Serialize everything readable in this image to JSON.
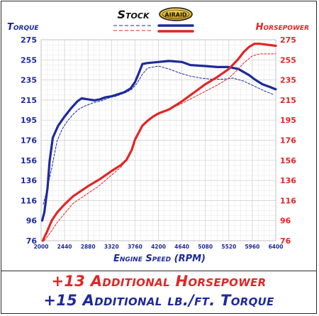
{
  "chart_data": {
    "type": "line",
    "title": "",
    "xlabel": "Engine Speed (RPM)",
    "ylabel_left": "Torque",
    "ylabel_right": "Horsepower",
    "x_ticks": [
      "2000",
      "2440",
      "2880",
      "3320",
      "3760",
      "4200",
      "4640",
      "5080",
      "5520",
      "5960",
      "6400"
    ],
    "y_ticks": [
      "76",
      "96",
      "116",
      "136",
      "156",
      "176",
      "195",
      "215",
      "235",
      "255",
      "275"
    ],
    "xlim": [
      2000,
      6400
    ],
    "ylim": [
      76,
      275
    ],
    "grid": true,
    "legend": {
      "stock_label": "Stock",
      "airaid_label": "AIRAID",
      "position": "top-center"
    },
    "colors": {
      "torque": "#1d2a9c",
      "horsepower": "#e22526"
    },
    "series": [
      {
        "name": "Torque",
        "variant": "Stock",
        "color": "#1d2a9c",
        "style": "dashed",
        "points": [
          [
            2040,
            112
          ],
          [
            2100,
            124
          ],
          [
            2200,
            148
          ],
          [
            2300,
            175
          ],
          [
            2400,
            187
          ],
          [
            2500,
            195
          ],
          [
            2600,
            201
          ],
          [
            2700,
            206
          ],
          [
            2800,
            209
          ],
          [
            2900,
            211
          ],
          [
            3000,
            213
          ],
          [
            3100,
            214
          ],
          [
            3200,
            216
          ],
          [
            3300,
            218
          ],
          [
            3400,
            219
          ],
          [
            3500,
            221
          ],
          [
            3600,
            223
          ],
          [
            3700,
            226
          ],
          [
            3800,
            232
          ],
          [
            3900,
            241
          ],
          [
            4000,
            247
          ],
          [
            4200,
            249
          ],
          [
            4400,
            246
          ],
          [
            4600,
            242
          ],
          [
            4800,
            239
          ],
          [
            5000,
            237
          ],
          [
            5200,
            236
          ],
          [
            5400,
            236
          ],
          [
            5600,
            237
          ],
          [
            5800,
            234
          ],
          [
            6000,
            229
          ],
          [
            6200,
            224
          ],
          [
            6350,
            221
          ]
        ]
      },
      {
        "name": "Torque",
        "variant": "AIRAID",
        "color": "#1d2a9c",
        "style": "solid",
        "points": [
          [
            2020,
            96
          ],
          [
            2060,
            104
          ],
          [
            2120,
            128
          ],
          [
            2160,
            155
          ],
          [
            2220,
            178
          ],
          [
            2320,
            190
          ],
          [
            2440,
            199
          ],
          [
            2560,
            207
          ],
          [
            2680,
            214
          ],
          [
            2760,
            217
          ],
          [
            2880,
            216
          ],
          [
            3000,
            215
          ],
          [
            3100,
            216
          ],
          [
            3200,
            218
          ],
          [
            3320,
            219
          ],
          [
            3440,
            221
          ],
          [
            3560,
            223
          ],
          [
            3680,
            227
          ],
          [
            3760,
            233
          ],
          [
            3840,
            243
          ],
          [
            3900,
            251
          ],
          [
            4000,
            252
          ],
          [
            4200,
            253
          ],
          [
            4400,
            254
          ],
          [
            4640,
            253
          ],
          [
            4800,
            250
          ],
          [
            5080,
            249
          ],
          [
            5300,
            248
          ],
          [
            5520,
            248
          ],
          [
            5700,
            246
          ],
          [
            5900,
            240
          ],
          [
            6000,
            236
          ],
          [
            6150,
            231
          ],
          [
            6300,
            228
          ],
          [
            6400,
            226
          ]
        ]
      },
      {
        "name": "Horsepower",
        "variant": "Stock",
        "color": "#e22526",
        "style": "dashed",
        "points": [
          [
            2060,
            76
          ],
          [
            2200,
            86
          ],
          [
            2300,
            94
          ],
          [
            2440,
            103
          ],
          [
            2600,
            113
          ],
          [
            2880,
            123
          ],
          [
            3100,
            131
          ],
          [
            3320,
            141
          ],
          [
            3500,
            149
          ],
          [
            3600,
            156
          ],
          [
            3700,
            166
          ],
          [
            3760,
            175
          ],
          [
            3800,
            181
          ],
          [
            3900,
            190
          ],
          [
            4000,
            195
          ],
          [
            4100,
            199
          ],
          [
            4200,
            201
          ],
          [
            4400,
            206
          ],
          [
            4640,
            212
          ],
          [
            4900,
            219
          ],
          [
            5080,
            224
          ],
          [
            5300,
            230
          ],
          [
            5520,
            237
          ],
          [
            5700,
            246
          ],
          [
            5800,
            252
          ],
          [
            5960,
            259
          ],
          [
            6100,
            261
          ],
          [
            6400,
            261
          ]
        ]
      },
      {
        "name": "Horsepower",
        "variant": "AIRAID",
        "color": "#e22526",
        "style": "solid",
        "points": [
          [
            2030,
            76
          ],
          [
            2120,
            86
          ],
          [
            2200,
            96
          ],
          [
            2300,
            104
          ],
          [
            2440,
            112
          ],
          [
            2600,
            120
          ],
          [
            2880,
            130
          ],
          [
            3100,
            137
          ],
          [
            3320,
            145
          ],
          [
            3500,
            151
          ],
          [
            3600,
            156
          ],
          [
            3700,
            166
          ],
          [
            3760,
            176
          ],
          [
            3840,
            184
          ],
          [
            3900,
            190
          ],
          [
            4000,
            195
          ],
          [
            4100,
            199
          ],
          [
            4200,
            202
          ],
          [
            4400,
            206
          ],
          [
            4640,
            214
          ],
          [
            4900,
            224
          ],
          [
            5080,
            231
          ],
          [
            5300,
            238
          ],
          [
            5520,
            246
          ],
          [
            5700,
            256
          ],
          [
            5800,
            263
          ],
          [
            5900,
            268
          ],
          [
            6000,
            271
          ],
          [
            6100,
            271
          ],
          [
            6400,
            269
          ]
        ]
      }
    ]
  },
  "banner": {
    "line1": "+13 Additional Horsepower",
    "line2": "+15 Additional lb./ft. Torque"
  }
}
